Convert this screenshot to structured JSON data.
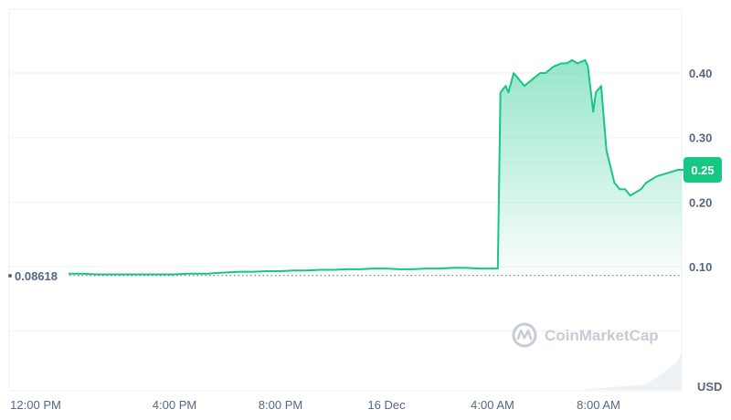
{
  "chart_data": {
    "type": "area",
    "x_ticks": [
      "12:00 PM",
      "4:00 PM",
      "8:00 PM",
      "16 Dec",
      "4:00 AM",
      "8:00 AM"
    ],
    "y_ticks": [
      "0.40",
      "0.30",
      "0.20",
      "0.10"
    ],
    "ylim": [
      -0.1,
      0.4
    ],
    "xlim": [
      -0.7,
      23.6
    ],
    "unit": "USD",
    "start_value_label": "0.08618",
    "start_value": 0.08618,
    "current_price_label": "0.25",
    "current_price": 0.25,
    "grid": true,
    "colors": {
      "line": "#16c784",
      "area_top": "#16c784",
      "price_badge": "#16c784",
      "grid": "#eff2f5",
      "start_line": "#58667e",
      "text": "#58667e",
      "watermark": "#c6cbd4",
      "volume": "#eff2f5"
    },
    "series": [
      {
        "x": [
          0,
          0.5,
          1,
          1.5,
          2,
          2.5,
          3,
          3.5,
          4,
          4.5,
          5,
          5.3,
          5.5,
          6,
          6.5,
          7,
          7.5,
          8,
          8.5,
          9,
          9.5,
          10,
          10.5,
          11,
          11.5,
          12,
          12.5,
          13,
          13.5,
          14,
          14.5,
          15,
          15.5,
          16,
          16.2,
          16.3,
          16.5,
          16.6,
          16.8,
          17,
          17.2,
          17.5,
          17.8,
          18,
          18.3,
          18.6,
          18.8,
          19,
          19.2,
          19.5,
          19.6,
          19.8,
          19.9,
          20.1,
          20.3,
          20.6,
          20.8,
          21,
          21.2,
          21.4,
          21.6,
          21.8,
          22.2,
          22.6,
          23,
          23.3,
          23.5
        ],
        "y": [
          0.089,
          0.089,
          0.088,
          0.088,
          0.088,
          0.088,
          0.088,
          0.088,
          0.088,
          0.089,
          0.089,
          0.089,
          0.09,
          0.091,
          0.092,
          0.092,
          0.093,
          0.093,
          0.094,
          0.094,
          0.095,
          0.095,
          0.096,
          0.096,
          0.097,
          0.097,
          0.096,
          0.096,
          0.097,
          0.097,
          0.098,
          0.098,
          0.097,
          0.097,
          0.097,
          0.37,
          0.38,
          0.37,
          0.4,
          0.39,
          0.38,
          0.39,
          0.4,
          0.4,
          0.41,
          0.415,
          0.415,
          0.42,
          0.415,
          0.42,
          0.41,
          0.34,
          0.37,
          0.38,
          0.28,
          0.23,
          0.22,
          0.22,
          0.21,
          0.215,
          0.22,
          0.23,
          0.24,
          0.245,
          0.25,
          0.25,
          0.25
        ]
      }
    ],
    "volume_profile": [
      [
        19.4,
        0
      ],
      [
        20.0,
        0.002
      ],
      [
        21.0,
        0.004
      ],
      [
        21.8,
        0.006
      ],
      [
        22.4,
        0.018
      ],
      [
        22.7,
        0.025
      ],
      [
        23.0,
        0.032
      ],
      [
        23.3,
        0.042
      ],
      [
        23.6,
        0.052
      ]
    ]
  },
  "watermark": {
    "text": "CoinMarketCap",
    "icon": "coinmarketcap-logo-icon"
  }
}
